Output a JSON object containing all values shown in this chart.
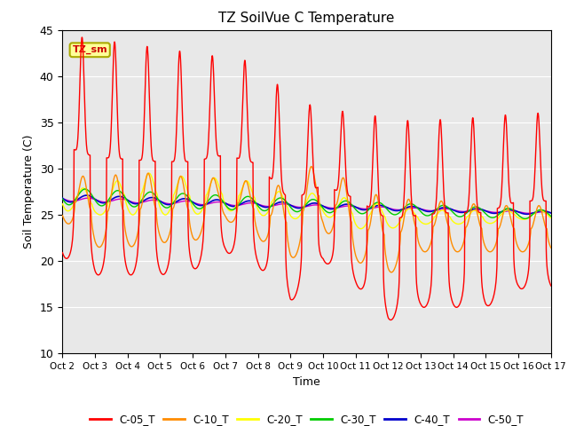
{
  "title": "TZ SoilVue C Temperature",
  "ylabel": "Soil Temperature (C)",
  "xlabel": "Time",
  "ylim": [
    10,
    45
  ],
  "xlim": [
    0,
    15
  ],
  "yticks": [
    10,
    15,
    20,
    25,
    30,
    35,
    40,
    45
  ],
  "xtick_labels": [
    "Oct 2",
    "Oct 3",
    "Oct 4",
    "Oct 5",
    "Oct 6",
    "Oct 7",
    "Oct 8",
    "Oct 9",
    "Oct 10",
    "Oct 11",
    "Oct 12",
    "Oct 13",
    "Oct 14",
    "Oct 15",
    "Oct 16",
    "Oct 17"
  ],
  "background_color": "#e8e8e8",
  "series_colors": {
    "C-05_T": "#ff0000",
    "C-10_T": "#ff8c00",
    "C-20_T": "#ffff00",
    "C-30_T": "#00cc00",
    "C-40_T": "#0000cc",
    "C-50_T": "#cc00cc"
  },
  "legend_label": "TZ_sm",
  "legend_box_color": "#ffff99",
  "legend_box_edge": "#aaaa00",
  "c05_peaks": [
    44.5,
    44.0,
    43.5,
    43.0,
    42.5,
    42.0,
    41.5,
    37.5,
    36.5,
    36.0,
    35.5,
    35.0,
    35.5,
    35.5,
    36.0
  ],
  "c05_troughs": [
    20.5,
    18.5,
    18.5,
    18.5,
    19.0,
    21.0,
    19.5,
    15.5,
    20.0,
    17.5,
    13.5,
    15.0,
    15.0,
    15.0,
    17.0
  ],
  "c10_peaks": [
    29.5,
    29.0,
    29.5,
    29.5,
    29.0,
    29.0,
    28.5,
    28.0,
    31.5,
    27.5,
    27.0,
    26.5,
    26.5,
    26.0,
    26.0
  ],
  "c10_troughs": [
    24.5,
    21.5,
    21.5,
    22.0,
    22.0,
    24.5,
    22.5,
    20.0,
    23.5,
    20.0,
    18.5,
    21.0,
    21.0,
    21.0,
    21.0
  ],
  "c20_peaks": [
    29.5,
    27.0,
    29.5,
    29.5,
    29.0,
    29.0,
    28.5,
    27.0,
    27.5,
    26.5,
    26.0,
    25.5,
    25.5,
    25.5,
    25.5
  ],
  "c20_troughs": [
    25.5,
    25.0,
    25.0,
    25.0,
    25.0,
    25.5,
    25.0,
    24.5,
    25.0,
    23.5,
    23.5,
    24.0,
    24.0,
    24.0,
    24.5
  ]
}
